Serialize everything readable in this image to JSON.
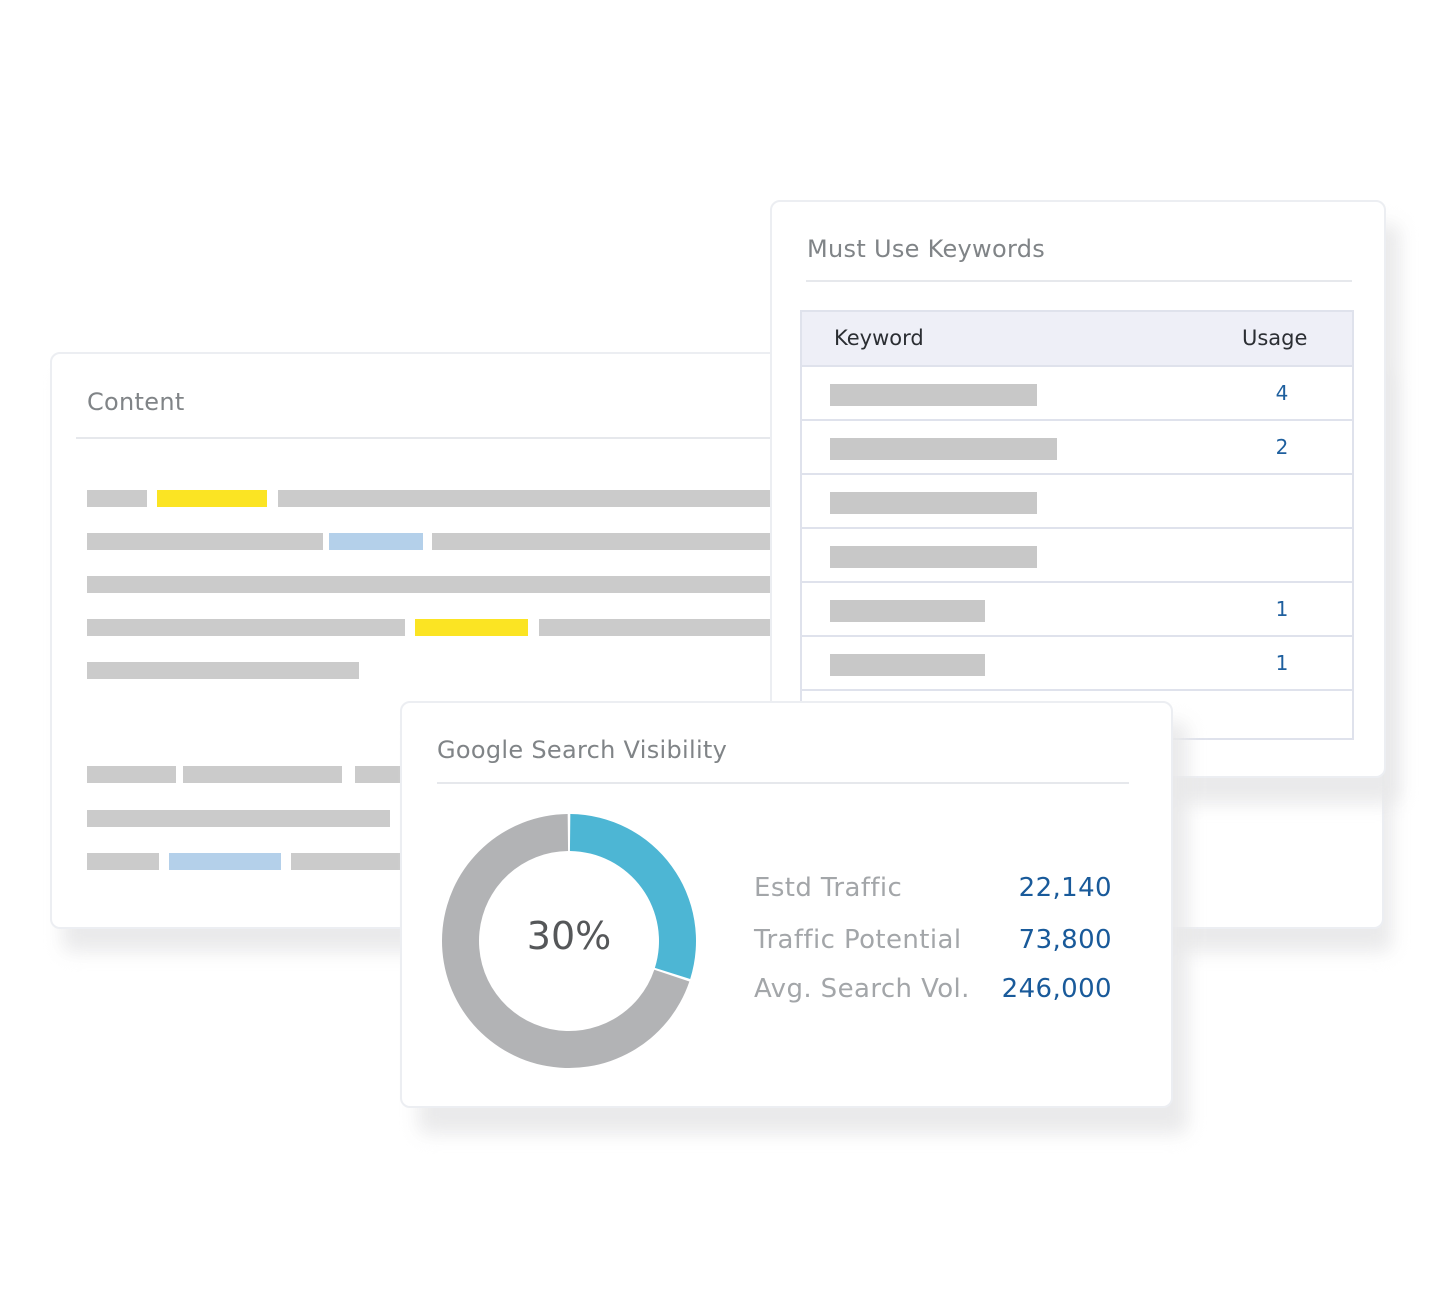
{
  "content_card": {
    "title": "Content"
  },
  "keywords_card": {
    "title": "Must Use Keywords",
    "columns": {
      "keyword": "Keyword",
      "usage": "Usage"
    },
    "rows": [
      {
        "usage": "4"
      },
      {
        "usage": "2"
      },
      {
        "usage": ""
      },
      {
        "usage": ""
      },
      {
        "usage": "1"
      },
      {
        "usage": "1"
      },
      {
        "usage": ""
      }
    ]
  },
  "visibility_card": {
    "title": "Google Search Visibility",
    "visibility_percent": 30,
    "visibility_label": "30%",
    "metrics": [
      {
        "label": "Estd Traffic",
        "value": "22,140"
      },
      {
        "label": "Traffic Potential",
        "value": "73,800"
      },
      {
        "label": "Avg. Search Vol.",
        "value": "246,000"
      }
    ]
  },
  "colors": {
    "donut_fill": "#4db6d4",
    "donut_track": "#b2b3b5",
    "highlight_yellow": "#fbe423",
    "highlight_blue": "#b4d0ea",
    "value_blue": "#195a9a"
  }
}
